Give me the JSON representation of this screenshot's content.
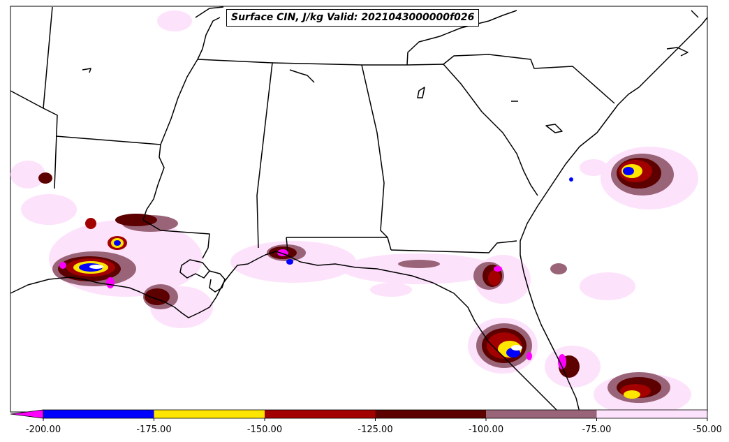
{
  "title": "Surface CIN, J/kg Valid: 2021043000000f026",
  "colorbar": {
    "tick_labels": [
      "-200.00",
      "-175.00",
      "-150.00",
      "-125.00",
      "-100.00",
      "-75.00",
      "-50.00"
    ],
    "extend_color": "#ff00ff",
    "bins": [
      {
        "from": -200,
        "to": -175,
        "color": "#0000ff"
      },
      {
        "from": -175,
        "to": -150,
        "color": "#ffe600"
      },
      {
        "from": -150,
        "to": -125,
        "color": "#a30000"
      },
      {
        "from": -125,
        "to": -100,
        "color": "#5c0000"
      },
      {
        "from": -100,
        "to": -75,
        "color": "#9a6478"
      },
      {
        "from": -75,
        "to": -50,
        "color": "#fde2fb"
      }
    ]
  },
  "colors": {
    "boundary": "#000000",
    "background": "#ffffff"
  }
}
